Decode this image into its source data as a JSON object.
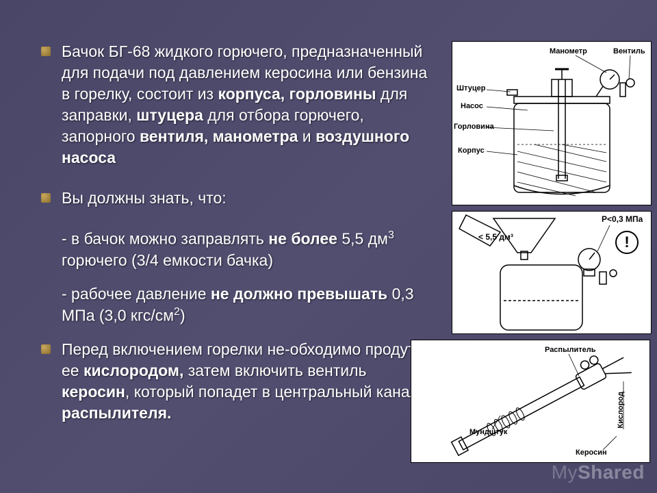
{
  "bullets": [
    {
      "parts": [
        {
          "t": "Бачок БГ-68 жидкого горючего, предназначенный для подачи под давлением керосина или бензина в горелку, состоит из ",
          "b": false
        },
        {
          "t": "корпуса, горловины",
          "b": true
        },
        {
          "t": " для заправки, ",
          "b": false
        },
        {
          "t": "штуцера",
          "b": true
        },
        {
          "t": " для отбора горючего, запорного ",
          "b": false
        },
        {
          "t": "вентиля, манометра",
          "b": true
        },
        {
          "t": " и ",
          "b": false
        },
        {
          "t": "воздушного насоса",
          "b": true
        }
      ]
    },
    {
      "parts": [
        {
          "t": "Вы должны знать, что:",
          "b": false
        }
      ],
      "subs": [
        {
          "parts": [
            {
              "t": "- в бачок можно заправлять ",
              "b": false
            },
            {
              "t": "не более",
              "b": true
            },
            {
              "t": " 5,5 дм",
              "b": false
            },
            {
              "t": "3",
              "sup": true
            },
            {
              "t": " горючего (3/4 емкости бачка)",
              "b": false
            }
          ]
        },
        {
          "parts": [
            {
              "t": "- рабочее давление ",
              "b": false
            },
            {
              "t": "не должно превышать",
              "b": true
            },
            {
              "t": " 0,3 МПа (3,0 кгс/см",
              "b": false
            },
            {
              "t": "2",
              "sup": true
            },
            {
              "t": ")",
              "b": false
            }
          ]
        }
      ]
    },
    {
      "parts": [
        {
          "t": "Перед включением горелки не-обходимо продуть ее ",
          "b": false
        },
        {
          "t": "кислородом,",
          "b": true
        },
        {
          "t": " затем включить вентиль ",
          "b": false
        },
        {
          "t": "керосин",
          "b": true
        },
        {
          "t": ", который попадет в центральный канал ",
          "b": false
        },
        {
          "t": "распылителя.",
          "b": true
        }
      ]
    }
  ],
  "diagram1": {
    "labels": {
      "manometr": "Манометр",
      "ventil": "Вентиль",
      "shtutser": "Штуцер",
      "nasos": "Насос",
      "gorlovina": "Горловина",
      "korpus": "Корпус"
    },
    "stroke": "#000000",
    "fill_hatch": "#000000"
  },
  "diagram2": {
    "labels": {
      "volume": "< 5,5 дм³",
      "pressure": "P<0,3 МПа",
      "excl": "!"
    },
    "stroke": "#000000"
  },
  "diagram3": {
    "labels": {
      "raspylitel": "Распылитель",
      "kislorod": "Кислород",
      "mundshtuk": "Мундштук",
      "kerosin": "Керосин"
    },
    "stroke": "#000000"
  },
  "watermark": {
    "left": "My",
    "right": "Shared"
  }
}
